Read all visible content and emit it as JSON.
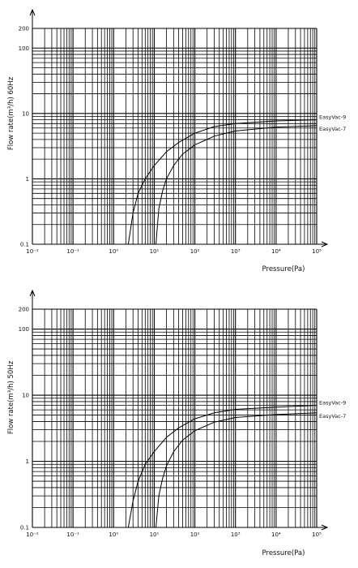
{
  "chart_data": [
    {
      "type": "line",
      "ylabel": "Flow rate(m³/h) 60Hz",
      "xlabel": "Pressure(Pa)",
      "xscale": "log",
      "yscale": "log",
      "xlim": [
        0.01,
        100000
      ],
      "ylim": [
        0.1,
        200
      ],
      "grid": true,
      "x_ticks": [
        "10⁻²",
        "10⁻¹",
        "10⁰",
        "10¹",
        "10²",
        "10³",
        "10⁴",
        "10⁵"
      ],
      "y_ticks": [
        "200",
        "100",
        "10",
        "1",
        "0.1"
      ],
      "series": [
        {
          "name": "EasyVac-9",
          "x": [
            2.3,
            3,
            4,
            6,
            10,
            20,
            40,
            100,
            300,
            1000,
            10000,
            100000
          ],
          "values": [
            0.1,
            0.3,
            0.6,
            1.0,
            1.6,
            2.6,
            3.6,
            5.0,
            6.3,
            7.0,
            7.7,
            8.0
          ]
        },
        {
          "name": "EasyVac-7",
          "x": [
            11,
            13,
            16,
            20,
            30,
            50,
            100,
            300,
            1000,
            10000,
            100000
          ],
          "values": [
            0.1,
            0.35,
            0.65,
            1.0,
            1.6,
            2.4,
            3.3,
            4.5,
            5.4,
            6.2,
            6.5
          ]
        }
      ]
    },
    {
      "type": "line",
      "ylabel": "Flow rate(m³/h) 50Hz",
      "xlabel": "Pressure(Pa)",
      "xscale": "log",
      "yscale": "log",
      "xlim": [
        0.01,
        100000
      ],
      "ylim": [
        0.1,
        200
      ],
      "grid": true,
      "x_ticks": [
        "10⁻²",
        "10⁻¹",
        "10⁰",
        "10¹",
        "10²",
        "10³",
        "10⁴",
        "10⁵"
      ],
      "y_ticks": [
        "200",
        "100",
        "10",
        "1",
        "0.1"
      ],
      "series": [
        {
          "name": "EasyVac-9",
          "x": [
            2.3,
            3,
            4,
            6,
            10,
            20,
            40,
            100,
            300,
            1000,
            10000,
            100000
          ],
          "values": [
            0.1,
            0.25,
            0.5,
            0.9,
            1.4,
            2.3,
            3.2,
            4.4,
            5.4,
            6.1,
            6.6,
            7.0
          ]
        },
        {
          "name": "EasyVac-7",
          "x": [
            11,
            13,
            16,
            20,
            30,
            50,
            100,
            300,
            1000,
            10000,
            100000
          ],
          "values": [
            0.1,
            0.3,
            0.55,
            0.85,
            1.4,
            2.1,
            2.9,
            3.9,
            4.6,
            5.1,
            5.4
          ]
        }
      ]
    }
  ]
}
